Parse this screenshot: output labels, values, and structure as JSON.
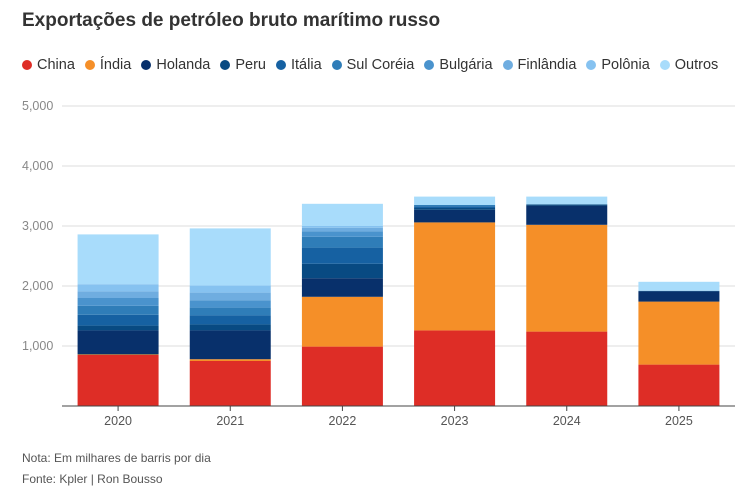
{
  "title": "Exportações de petróleo bruto marítimo russo",
  "note": "Nota: Em milhares de barris por dia",
  "source": "Fonte: Kpler | Ron Bousso",
  "chart_data": {
    "type": "bar",
    "stacked": true,
    "categories": [
      "2020",
      "2021",
      "2022",
      "2023",
      "2024",
      "2025"
    ],
    "ylim": [
      0,
      5000
    ],
    "yticks": [
      1000,
      2000,
      3000,
      4000,
      5000
    ],
    "ytick_labels": [
      "1,000",
      "2,000",
      "3,000",
      "4,000",
      "5,000"
    ],
    "grid": true,
    "legend_position": "top-left",
    "series": [
      {
        "name": "China",
        "color": "#de2d26",
        "values": [
          850,
          750,
          990,
          1260,
          1240,
          690
        ]
      },
      {
        "name": "Índia",
        "color": "#f58f28",
        "values": [
          10,
          30,
          830,
          1800,
          1780,
          1050
        ]
      },
      {
        "name": "Holanda",
        "color": "#08306b",
        "values": [
          400,
          480,
          310,
          210,
          320,
          170
        ]
      },
      {
        "name": "Peru",
        "color": "#084a82",
        "values": [
          80,
          100,
          240,
          30,
          20,
          10
        ]
      },
      {
        "name": "Itália",
        "color": "#1661a2",
        "values": [
          180,
          150,
          270,
          30,
          0,
          0
        ]
      },
      {
        "name": "Sul Coréia",
        "color": "#2f7db8",
        "values": [
          150,
          130,
          180,
          20,
          0,
          0
        ]
      },
      {
        "name": "Bulgária",
        "color": "#4a93cd",
        "values": [
          130,
          120,
          90,
          0,
          0,
          0
        ]
      },
      {
        "name": "Finlândia",
        "color": "#6fade0",
        "values": [
          110,
          130,
          60,
          0,
          0,
          0
        ]
      },
      {
        "name": "Polônia",
        "color": "#86c2f0",
        "values": [
          120,
          120,
          30,
          0,
          0,
          0
        ]
      },
      {
        "name": "Outros",
        "color": "#a8dcfb",
        "values": [
          830,
          950,
          370,
          140,
          130,
          150
        ]
      }
    ]
  }
}
